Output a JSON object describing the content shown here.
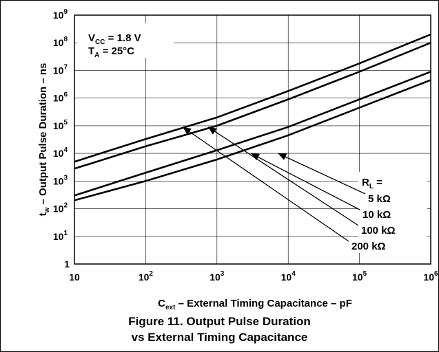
{
  "chart_data": {
    "type": "line",
    "title": "",
    "caption_line1": "Figure 11. Output Pulse Duration",
    "caption_line2": "vs External Timing Capacitance",
    "xlabel": {
      "main": "C",
      "sub": "ext",
      "rest": " – External Timing Capacitance – pF"
    },
    "ylabel": {
      "main": "t",
      "sub": "w",
      "rest": " – Output Pulse Duration – ns"
    },
    "x_scale": "log",
    "y_scale": "log",
    "xlim": [
      10,
      1000000
    ],
    "ylim": [
      1,
      1000000000
    ],
    "x_ticks": [
      {
        "base": "10",
        "exp": ""
      },
      {
        "base": "10",
        "exp": "2"
      },
      {
        "base": "10",
        "exp": "3"
      },
      {
        "base": "10",
        "exp": "4"
      },
      {
        "base": "10",
        "exp": "5"
      },
      {
        "base": "10",
        "exp": "6"
      }
    ],
    "y_ticks": [
      {
        "base": "1",
        "exp": ""
      },
      {
        "base": "10",
        "exp": "1"
      },
      {
        "base": "10",
        "exp": "2"
      },
      {
        "base": "10",
        "exp": "3"
      },
      {
        "base": "10",
        "exp": "4"
      },
      {
        "base": "10",
        "exp": "5"
      },
      {
        "base": "10",
        "exp": "6"
      },
      {
        "base": "10",
        "exp": "7"
      },
      {
        "base": "10",
        "exp": "8"
      },
      {
        "base": "10",
        "exp": "9"
      }
    ],
    "grid": true,
    "conditions": [
      {
        "main": "V",
        "sub": "CC",
        "rest": " = 1.8 V"
      },
      {
        "main": "T",
        "sub": "A",
        "rest": " = 25°C"
      }
    ],
    "legend_title": {
      "main": "R",
      "sub": "L",
      "rest": " ="
    },
    "series": [
      {
        "name": "200 kΩ",
        "x": [
          10,
          100,
          1000,
          10000,
          100000,
          1000000
        ],
        "y": [
          5000,
          33000,
          200000,
          1800000,
          18000000,
          200000000
        ]
      },
      {
        "name": "100 kΩ",
        "x": [
          10,
          100,
          1000,
          10000,
          100000,
          1000000
        ],
        "y": [
          2800,
          18000,
          100000,
          900000,
          9000000,
          100000000
        ]
      },
      {
        "name": "10 kΩ",
        "x": [
          10,
          100,
          1000,
          10000,
          100000,
          1000000
        ],
        "y": [
          300,
          2000,
          13000,
          90000,
          900000,
          9000000
        ]
      },
      {
        "name": "5 kΩ",
        "x": [
          10,
          100,
          1000,
          10000,
          100000,
          1000000
        ],
        "y": [
          200,
          1000,
          6000,
          45000,
          450000,
          4500000
        ]
      }
    ],
    "legend_entries": [
      "5 kΩ",
      "10 kΩ",
      "100 kΩ",
      "200 kΩ"
    ],
    "annotations": [
      {
        "label": "5 kΩ",
        "arrow_tip": [
          7200,
          10000
        ]
      },
      {
        "label": "10 kΩ",
        "arrow_tip": [
          3000,
          10000
        ]
      },
      {
        "label": "100 kΩ",
        "arrow_tip": [
          750,
          90000
        ]
      },
      {
        "label": "200 kΩ",
        "arrow_tip": [
          330,
          90000
        ]
      }
    ]
  }
}
